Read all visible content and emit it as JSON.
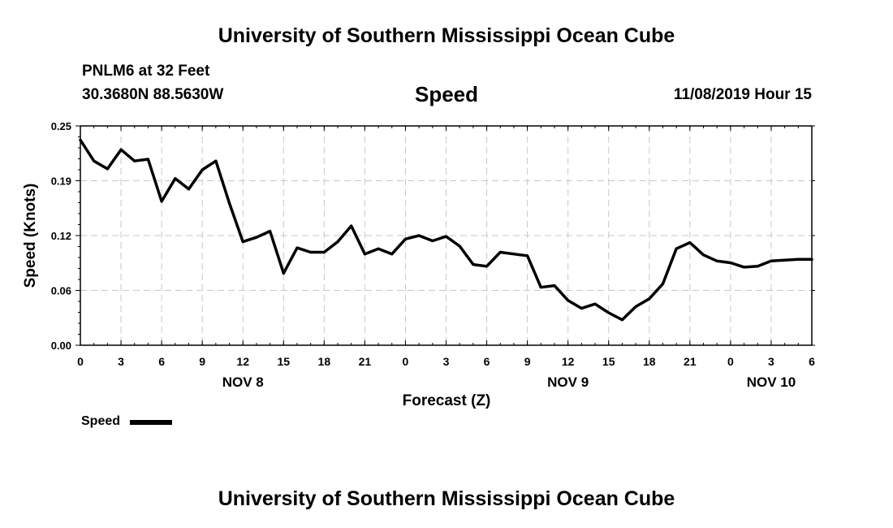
{
  "page": {
    "top_title": "University of Southern Mississippi Ocean Cube",
    "bottom_title": "University of Southern Mississippi Ocean Cube",
    "station": "PNLM6 at 32 Feet",
    "location": "30.3680N 88.5630W",
    "timestamp": "11/08/2019 Hour 15",
    "legend_label": "Speed"
  },
  "chart_data": {
    "type": "line",
    "title": "Speed",
    "xlabel": "Forecast (Z)",
    "ylabel": "Speed (Knots)",
    "xlim": [
      0,
      54
    ],
    "ylim": [
      0.0,
      0.25
    ],
    "grid": true,
    "legend": "bottom-left",
    "y_ticks": [
      {
        "value": 0.0,
        "label": "0.00"
      },
      {
        "value": 0.0625,
        "label": "0.06"
      },
      {
        "value": 0.125,
        "label": "0.12"
      },
      {
        "value": 0.1875,
        "label": "0.19"
      },
      {
        "value": 0.25,
        "label": "0.25"
      }
    ],
    "x_ticks": [
      {
        "value": 0,
        "label": "0"
      },
      {
        "value": 3,
        "label": "3"
      },
      {
        "value": 6,
        "label": "6"
      },
      {
        "value": 9,
        "label": "9"
      },
      {
        "value": 12,
        "label": "12"
      },
      {
        "value": 15,
        "label": "15"
      },
      {
        "value": 18,
        "label": "18"
      },
      {
        "value": 21,
        "label": "21"
      },
      {
        "value": 24,
        "label": "0"
      },
      {
        "value": 27,
        "label": "3"
      },
      {
        "value": 30,
        "label": "6"
      },
      {
        "value": 33,
        "label": "9"
      },
      {
        "value": 36,
        "label": "12"
      },
      {
        "value": 39,
        "label": "15"
      },
      {
        "value": 42,
        "label": "18"
      },
      {
        "value": 45,
        "label": "21"
      },
      {
        "value": 48,
        "label": "0"
      },
      {
        "value": 51,
        "label": "3"
      },
      {
        "value": 54,
        "label": "6"
      }
    ],
    "date_labels": [
      {
        "value": 12,
        "label": "NOV 8"
      },
      {
        "value": 36,
        "label": "NOV 9"
      },
      {
        "value": 51,
        "label": "NOV 10"
      }
    ],
    "series": [
      {
        "name": "Speed",
        "x": [
          0,
          1,
          2,
          3,
          4,
          5,
          6,
          7,
          8,
          9,
          10,
          11,
          12,
          13,
          14,
          15,
          16,
          17,
          18,
          19,
          20,
          21,
          22,
          23,
          24,
          25,
          26,
          27,
          28,
          29,
          30,
          31,
          32,
          33,
          34,
          35,
          36,
          37,
          38,
          39,
          40,
          41,
          42,
          43,
          44,
          45,
          46,
          47,
          48,
          49,
          50,
          51,
          52,
          53,
          54
        ],
        "values": [
          0.234,
          0.21,
          0.201,
          0.223,
          0.21,
          0.212,
          0.164,
          0.19,
          0.178,
          0.2,
          0.21,
          0.162,
          0.118,
          0.123,
          0.13,
          0.082,
          0.111,
          0.106,
          0.106,
          0.118,
          0.136,
          0.104,
          0.11,
          0.104,
          0.121,
          0.125,
          0.119,
          0.124,
          0.113,
          0.092,
          0.09,
          0.106,
          0.104,
          0.102,
          0.066,
          0.068,
          0.051,
          0.042,
          0.047,
          0.037,
          0.029,
          0.044,
          0.053,
          0.07,
          0.11,
          0.117,
          0.103,
          0.096,
          0.094,
          0.089,
          0.09,
          0.096,
          0.097,
          0.098,
          0.098
        ]
      }
    ]
  }
}
